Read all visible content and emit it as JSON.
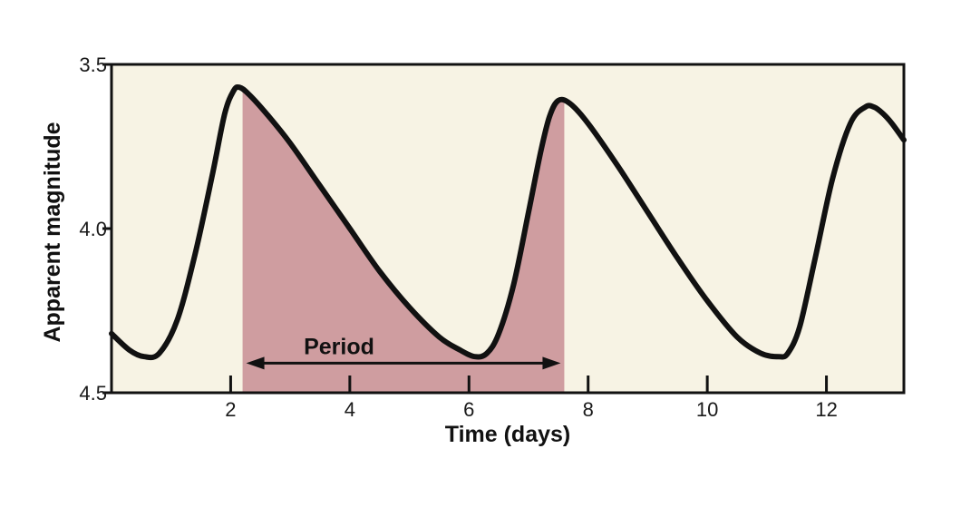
{
  "chart_data": {
    "type": "line",
    "xlabel": "Time (days)",
    "ylabel": "Apparent magnitude",
    "xlim": [
      0,
      13.3
    ],
    "ylim": [
      4.5,
      3.5
    ],
    "y_inverted": true,
    "x_ticks": [
      2,
      4,
      6,
      8,
      10,
      12
    ],
    "y_ticks": [
      3.5,
      4.0,
      4.5
    ],
    "y_tick_labels": [
      "3.5",
      "4.0",
      "4.5"
    ],
    "grid": false,
    "colors": {
      "background": "#f7f3e4",
      "line": "#111111",
      "period_fill": "#cf9da0",
      "frame": "#111111"
    },
    "series": [
      {
        "x": [
          0.0,
          0.3,
          0.55,
          0.8,
          1.1,
          1.4,
          1.7,
          1.9,
          2.05,
          2.15,
          2.3,
          2.6,
          3.0,
          3.5,
          4.0,
          4.5,
          5.0,
          5.5,
          5.85,
          6.1,
          6.3,
          6.5,
          6.75,
          7.0,
          7.2,
          7.35,
          7.5,
          7.7,
          8.0,
          8.5,
          9.0,
          9.5,
          10.0,
          10.5,
          10.9,
          11.2,
          11.35,
          11.55,
          11.8,
          12.1,
          12.4,
          12.65,
          12.8,
          12.95,
          13.1,
          13.3
        ],
        "y": [
          4.32,
          4.37,
          4.39,
          4.38,
          4.28,
          4.08,
          3.83,
          3.65,
          3.58,
          3.57,
          3.59,
          3.65,
          3.74,
          3.87,
          4.0,
          4.13,
          4.24,
          4.33,
          4.37,
          4.39,
          4.38,
          4.32,
          4.17,
          3.95,
          3.77,
          3.66,
          3.61,
          3.62,
          3.68,
          3.81,
          3.95,
          4.09,
          4.22,
          4.33,
          4.38,
          4.39,
          4.38,
          4.3,
          4.1,
          3.85,
          3.68,
          3.63,
          3.63,
          3.65,
          3.68,
          3.73
        ]
      }
    ],
    "period": {
      "label": "Period",
      "x_start": 2.2,
      "x_end": 7.6,
      "arrow_y": 4.41
    }
  }
}
